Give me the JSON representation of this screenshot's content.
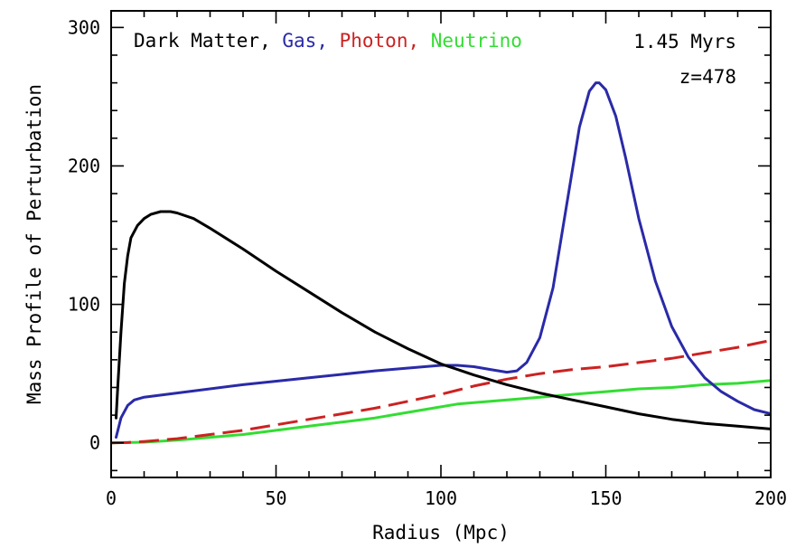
{
  "chart_data": {
    "type": "line",
    "title": "",
    "xlabel": "Radius (Mpc)",
    "ylabel": "Mass Profile of Perturbation",
    "xlim": [
      0,
      200
    ],
    "ylim": [
      -25,
      312
    ],
    "xticks": [
      0,
      50,
      100,
      150,
      200
    ],
    "yticks": [
      0,
      100,
      200,
      300
    ],
    "grid": false,
    "legend_position": "top-left",
    "legend_separator": ",",
    "annotations": [
      "1.45 Myrs",
      "z=478"
    ],
    "series": [
      {
        "name": "Dark Matter",
        "color": "#000000",
        "dash": "solid",
        "x": [
          1.5,
          2,
          3,
          4,
          5,
          6,
          8,
          10,
          12,
          15,
          18,
          20,
          25,
          30,
          40,
          50,
          60,
          70,
          80,
          90,
          100,
          110,
          120,
          130,
          140,
          150,
          160,
          170,
          180,
          190,
          200
        ],
        "y": [
          18,
          40,
          80,
          115,
          135,
          148,
          157,
          162,
          165,
          167,
          167,
          166,
          162,
          155,
          140,
          124,
          109,
          94,
          80,
          68,
          57,
          49,
          42,
          36,
          31,
          26,
          21,
          17,
          14,
          12,
          10
        ]
      },
      {
        "name": "Gas",
        "color": "#2a2aa8",
        "dash": "solid",
        "x": [
          1.5,
          3,
          5,
          7,
          10,
          20,
          40,
          60,
          80,
          95,
          100,
          105,
          110,
          115,
          120,
          123,
          126,
          130,
          134,
          138,
          142,
          145,
          147,
          148,
          150,
          153,
          156,
          160,
          165,
          170,
          175,
          180,
          185,
          190,
          195,
          200
        ],
        "y": [
          4,
          18,
          27,
          31,
          33,
          36,
          42,
          47,
          52,
          55,
          56,
          56,
          55,
          53,
          51,
          52,
          58,
          76,
          112,
          170,
          228,
          254,
          260,
          260,
          255,
          236,
          206,
          162,
          117,
          84,
          62,
          47,
          37,
          30,
          24,
          21
        ]
      },
      {
        "name": "Photon",
        "color": "#cc2222",
        "dash": "long-dash",
        "x": [
          0,
          5,
          10,
          20,
          30,
          40,
          50,
          60,
          70,
          80,
          90,
          100,
          110,
          120,
          130,
          140,
          150,
          160,
          170,
          180,
          190,
          200
        ],
        "y": [
          0,
          0.2,
          1,
          3,
          6,
          9,
          13,
          17,
          21,
          25,
          30,
          35,
          41,
          46,
          50,
          53,
          55,
          58,
          61,
          65,
          69,
          74
        ]
      },
      {
        "name": "Neutrino",
        "color": "#33dd33",
        "dash": "solid",
        "x": [
          0,
          10,
          20,
          30,
          40,
          50,
          60,
          70,
          80,
          90,
          100,
          105,
          110,
          120,
          130,
          140,
          150,
          160,
          170,
          180,
          190,
          200
        ],
        "y": [
          0,
          0.5,
          2,
          4,
          6,
          9,
          12,
          15,
          18,
          22,
          26,
          28,
          29,
          31,
          33,
          35,
          37,
          39,
          40,
          42,
          43,
          45
        ]
      }
    ]
  }
}
